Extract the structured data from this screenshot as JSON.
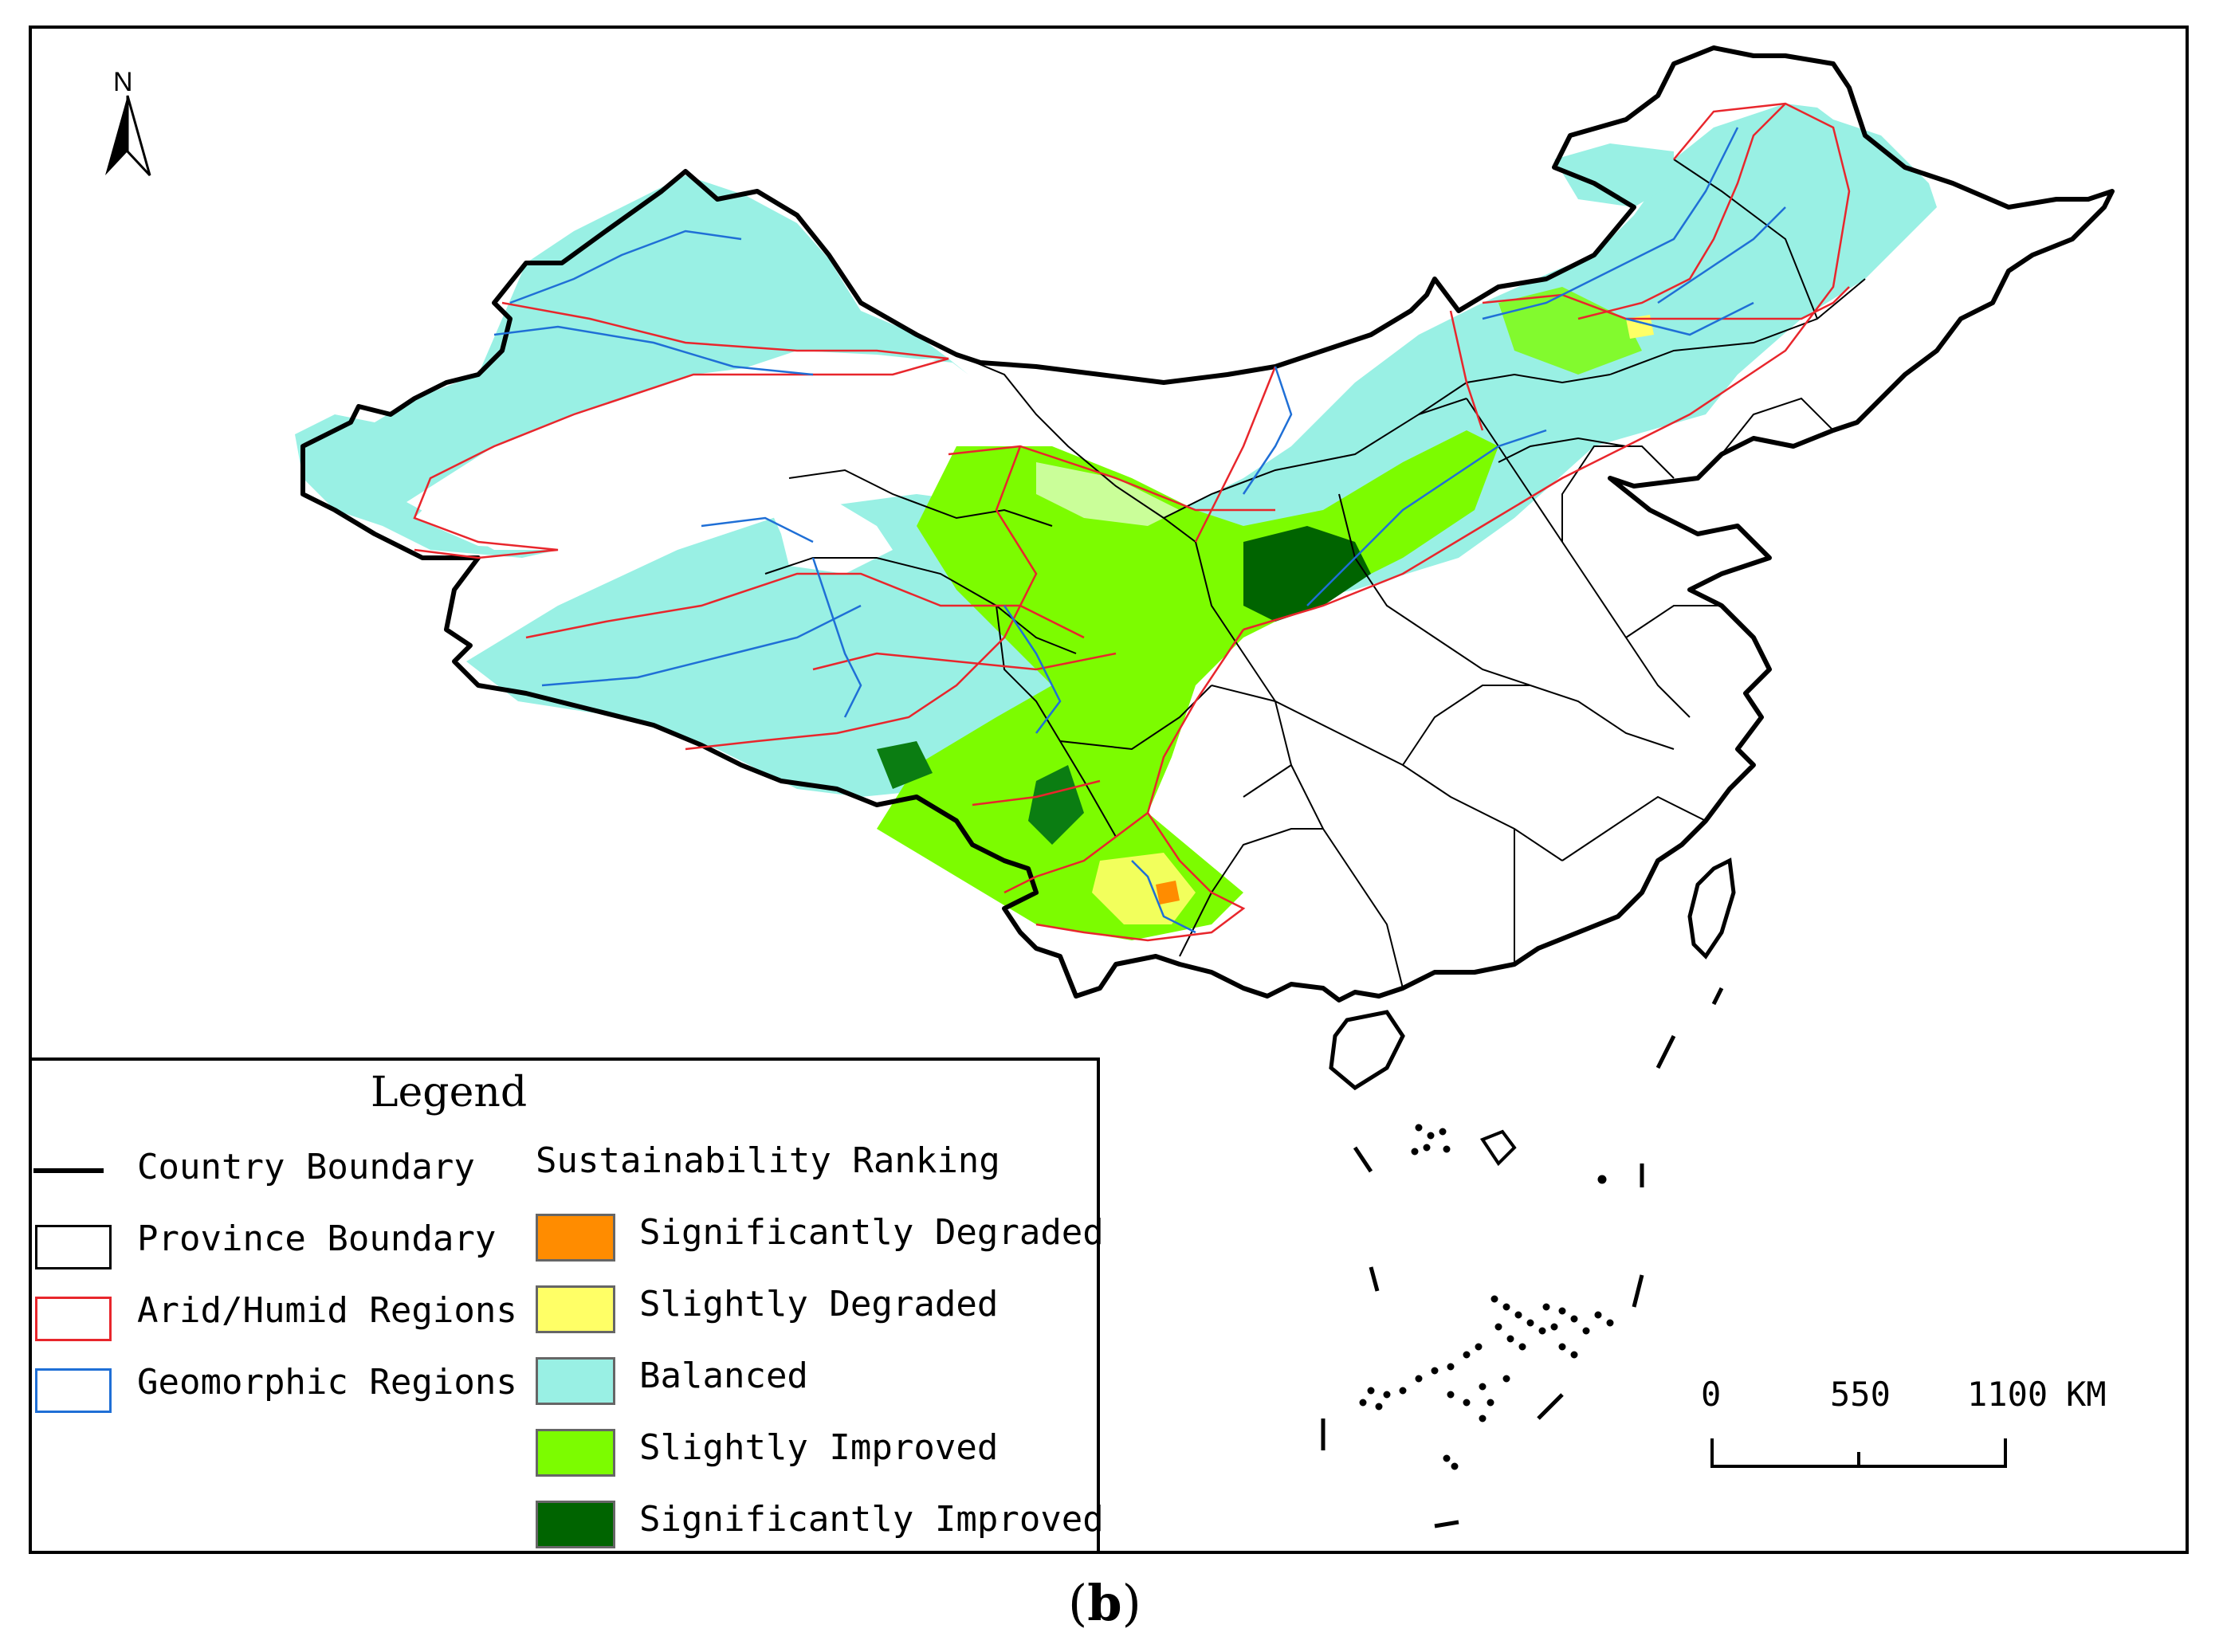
{
  "north_arrow": {
    "label": "N"
  },
  "legend": {
    "title": "Legend",
    "boundaries": [
      {
        "label": "Country Boundary",
        "style": "line",
        "color": "#000000"
      },
      {
        "label": "Province Boundary",
        "style": "box",
        "color": "#000000"
      },
      {
        "label": "Arid/Humid Regions",
        "style": "box",
        "color": "#e8262c"
      },
      {
        "label": "Geomorphic Regions",
        "style": "box",
        "color": "#1f6fd6"
      }
    ],
    "ranking_title": "Sustainability Ranking",
    "ranking": [
      {
        "label": "Significantly Degraded",
        "color": "#ff8c00"
      },
      {
        "label": "Slightly Degraded",
        "color": "#ffff66"
      },
      {
        "label": "Balanced",
        "color": "#99f0e4"
      },
      {
        "label": "Slightly Improved",
        "color": "#7cfc00"
      },
      {
        "label": "Significantly Improved",
        "color": "#006400"
      }
    ]
  },
  "scale_bar": {
    "labels": [
      "0",
      "550",
      "1100"
    ],
    "unit": "KM"
  },
  "caption": {
    "open": "(",
    "letter": "b",
    "close": ")"
  }
}
